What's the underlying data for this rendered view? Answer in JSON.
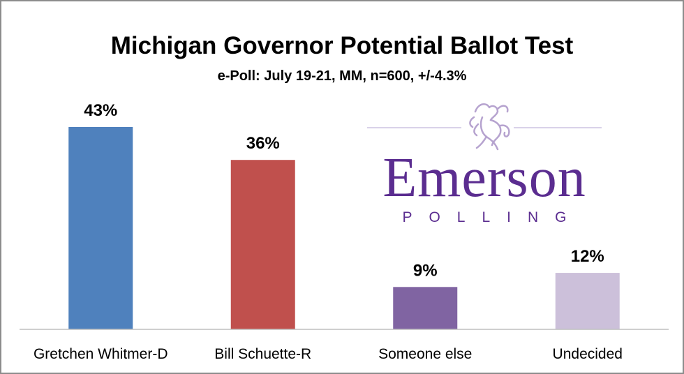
{
  "chart_data": {
    "type": "bar",
    "title": "Michigan Governor Potential Ballot Test",
    "subtitle": "e-Poll: July 19-21, MM, n=600, +/-4.3%",
    "categories": [
      "Gretchen Whitmer-D",
      "Bill Schuette-R",
      "Someone else",
      "Undecided"
    ],
    "values": [
      43,
      36,
      9,
      12
    ],
    "data_labels": [
      "43%",
      "36%",
      "9%",
      "12%"
    ],
    "colors": [
      "#4f81bd",
      "#c0504d",
      "#8064a2",
      "#ccc0da"
    ],
    "ylim": [
      0,
      45
    ],
    "grid": false,
    "legend": "none"
  },
  "logo": {
    "wordmark": "Emerson",
    "tagline": "POLLING",
    "icon": "lion-rampant-icon",
    "color": "#5b2d90"
  }
}
